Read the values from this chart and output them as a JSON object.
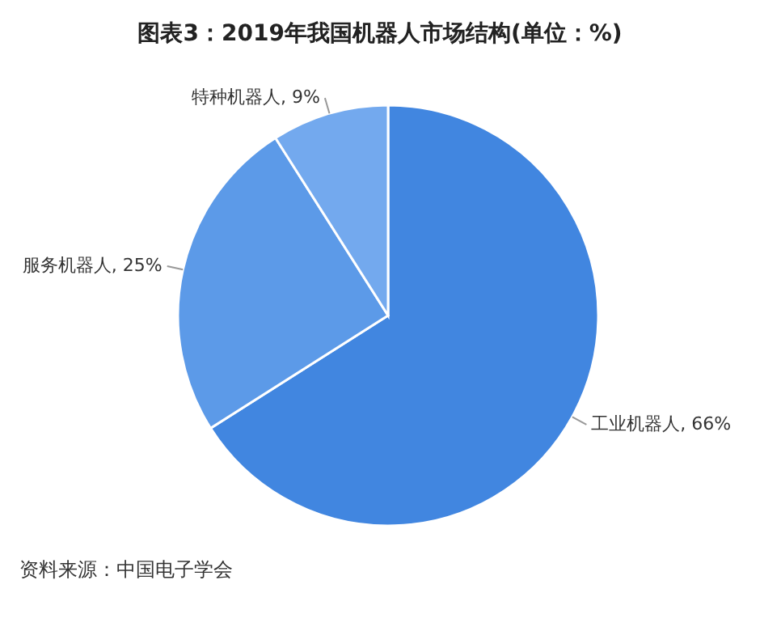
{
  "chart_data": {
    "type": "pie",
    "title": "图表3：2019年我国机器人市场结构(单位：%)",
    "categories": [
      "工业机器人",
      "服务机器人",
      "特种机器人"
    ],
    "values": [
      66,
      25,
      9
    ],
    "colors": [
      "#4186e0",
      "#5c9ae8",
      "#73a9ee"
    ],
    "value_labels": [
      "66%",
      "25%",
      "9%"
    ],
    "annotations": [
      "资料来源：中国电子学会"
    ]
  }
}
